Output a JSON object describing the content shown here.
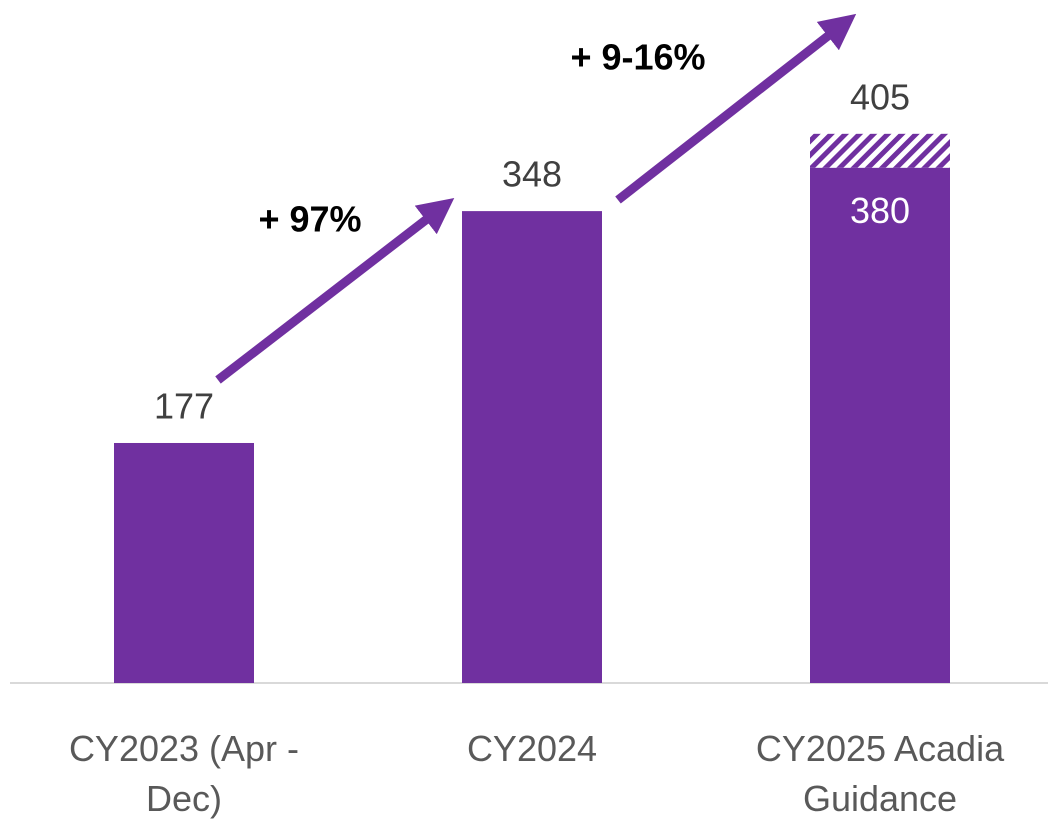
{
  "chart_data": {
    "type": "bar",
    "categories": [
      "CY2023 (Apr - Dec)",
      "CY2024",
      "CY2025 Acadia Guidance"
    ],
    "series": [
      {
        "color": "#7030a0",
        "values": [
          177,
          348,
          380
        ]
      },
      {
        "color": "#7030a0",
        "values": [
          null,
          null,
          405
        ],
        "pattern": "hatched"
      }
    ],
    "annotations": [
      "+ 97%",
      "+ 9-16%"
    ],
    "ylim": [
      0,
      500
    ]
  }
}
